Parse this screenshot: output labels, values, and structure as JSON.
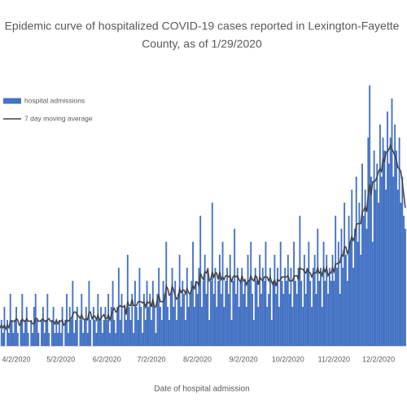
{
  "chart_data": {
    "type": "bar_line",
    "title": "Epidemic curve of hospitalized COVID-19 cases reported in Lexington-Fayette",
    "subtitle": "County, as of 1/29/2020",
    "x_label": "Date of hospital admission",
    "legend": "top-left",
    "categories": [
      null,
      null,
      null,
      null,
      null,
      null,
      null,
      null,
      null,
      null,
      null,
      null,
      "4/2/2020",
      null,
      null,
      null,
      null,
      null,
      null,
      null,
      null,
      null,
      null,
      null,
      null,
      null,
      null,
      null,
      null,
      null,
      null,
      null,
      null,
      null,
      null,
      null,
      null,
      null,
      null,
      null,
      null,
      null,
      "5/2/2020",
      null,
      null,
      null,
      null,
      null,
      null,
      null,
      null,
      null,
      null,
      null,
      null,
      null,
      null,
      null,
      null,
      null,
      null,
      null,
      null,
      null,
      null,
      null,
      null,
      null,
      null,
      null,
      null,
      null,
      null,
      "6/2/2020",
      null,
      null,
      null,
      null,
      null,
      null,
      null,
      null,
      null,
      null,
      null,
      null,
      null,
      null,
      null,
      null,
      null,
      null,
      null,
      null,
      null,
      null,
      null,
      null,
      null,
      null,
      null,
      null,
      null,
      "7/2/2020",
      null,
      null,
      null,
      null,
      null,
      null,
      null,
      null,
      null,
      null,
      null,
      null,
      null,
      null,
      null,
      null,
      null,
      null,
      null,
      null,
      null,
      null,
      null,
      null,
      null,
      null,
      null,
      null,
      null,
      null,
      "8/2/2020",
      null,
      null,
      null,
      null,
      null,
      null,
      null,
      null,
      null,
      null,
      null,
      null,
      null,
      null,
      null,
      null,
      null,
      null,
      null,
      null,
      null,
      null,
      null,
      null,
      null,
      null,
      null,
      null,
      null,
      null,
      "9/2/2020",
      null,
      null,
      null,
      null,
      null,
      null,
      null,
      null,
      null,
      null,
      null,
      null,
      null,
      null,
      null,
      null,
      null,
      null,
      null,
      null,
      null,
      null,
      null,
      null,
      null,
      null,
      null,
      null,
      null,
      "10/2/2020",
      null,
      null,
      null,
      null,
      null,
      null,
      null,
      null,
      null,
      null,
      null,
      null,
      null,
      null,
      null,
      null,
      null,
      null,
      null,
      null,
      null,
      null,
      null,
      null,
      null,
      null,
      null,
      null,
      null,
      null,
      "11/2/2020",
      null,
      null,
      null,
      null,
      null,
      null,
      null,
      null,
      null,
      null,
      null,
      null,
      null,
      null,
      null,
      null,
      null,
      null,
      null,
      null,
      null,
      null,
      null,
      null,
      null,
      null,
      null,
      null,
      null,
      "12/2/2020",
      null,
      null,
      null,
      null,
      null,
      null,
      null,
      null,
      null,
      null,
      null,
      null,
      null,
      null,
      null,
      null,
      null,
      null
    ],
    "series": [
      {
        "name": "hospital admissions",
        "type": "bar",
        "color": "#4472c4",
        "values": [
          1,
          0,
          2,
          1,
          3,
          0,
          2,
          1,
          4,
          2,
          1,
          2,
          3,
          1,
          0,
          2,
          4,
          1,
          2,
          3,
          1,
          0,
          2,
          1,
          3,
          4,
          2,
          1,
          0,
          2,
          3,
          1,
          2,
          4,
          1,
          0,
          2,
          3,
          1,
          2,
          1,
          2,
          1,
          3,
          0,
          2,
          4,
          1,
          3,
          2,
          5,
          1,
          2,
          3,
          0,
          2,
          4,
          1,
          2,
          3,
          1,
          5,
          2,
          0,
          3,
          2,
          1,
          4,
          2,
          3,
          1,
          2,
          3,
          2,
          4,
          1,
          3,
          5,
          2,
          1,
          3,
          6,
          2,
          4,
          1,
          3,
          2,
          7,
          3,
          2,
          4,
          1,
          5,
          3,
          2,
          6,
          3,
          1,
          4,
          2,
          5,
          3,
          4,
          2,
          5,
          3,
          1,
          4,
          6,
          3,
          2,
          5,
          4,
          8,
          3,
          2,
          4,
          6,
          3,
          5,
          2,
          4,
          7,
          3,
          5,
          4,
          2,
          6,
          3,
          4,
          5,
          8,
          3,
          5,
          4,
          6,
          10,
          3,
          5,
          7,
          4,
          6,
          2,
          5,
          11,
          4,
          6,
          3,
          5,
          7,
          4,
          8,
          3,
          5,
          6,
          4,
          7,
          2,
          5,
          9,
          4,
          6,
          3,
          5,
          6,
          4,
          5,
          3,
          7,
          5,
          8,
          4,
          2,
          6,
          5,
          3,
          7,
          4,
          6,
          5,
          8,
          3,
          4,
          6,
          2,
          5,
          7,
          4,
          6,
          3,
          8,
          5,
          4,
          6,
          5,
          7,
          4,
          6,
          3,
          8,
          5,
          4,
          6,
          10,
          5,
          3,
          7,
          4,
          6,
          8,
          5,
          3,
          6,
          7,
          4,
          9,
          5,
          6,
          3,
          8,
          5,
          7,
          4,
          6,
          5,
          7,
          5,
          10,
          6,
          8,
          4,
          9,
          6,
          11,
          7,
          5,
          10,
          8,
          12,
          6,
          9,
          13,
          8,
          11,
          7,
          14,
          10,
          12,
          9,
          16,
          20,
          13,
          8,
          15,
          12,
          14,
          11,
          17,
          13,
          16,
          15,
          12,
          18,
          14,
          16,
          19,
          13,
          17,
          15,
          12,
          16,
          11,
          13,
          10,
          9
        ]
      },
      {
        "name": "7 day moving average",
        "type": "line",
        "color": "#404040",
        "values": [
          1.6,
          1.4,
          1.6,
          1.4,
          1.6,
          1.3,
          1.6,
          1.4,
          1.9,
          1.9,
          1.9,
          1.9,
          2.1,
          2.0,
          1.6,
          1.7,
          2.1,
          1.9,
          1.9,
          2.1,
          1.9,
          1.9,
          1.9,
          1.7,
          1.7,
          2.1,
          2.1,
          1.9,
          1.9,
          2.0,
          2.1,
          1.9,
          1.9,
          2.0,
          2.1,
          1.9,
          1.9,
          1.9,
          1.7,
          2.0,
          1.7,
          1.9,
          1.9,
          2.0,
          1.6,
          1.7,
          2.0,
          1.9,
          2.0,
          2.1,
          2.4,
          2.6,
          2.6,
          2.4,
          2.3,
          2.1,
          2.4,
          2.1,
          2.0,
          2.1,
          2.0,
          2.6,
          2.6,
          2.1,
          2.3,
          2.3,
          2.0,
          2.4,
          2.0,
          2.1,
          2.3,
          2.4,
          2.1,
          2.1,
          2.4,
          2.0,
          2.4,
          2.7,
          2.9,
          2.6,
          2.7,
          3.0,
          3.1,
          3.0,
          3.0,
          3.1,
          2.4,
          3.4,
          3.1,
          3.1,
          3.6,
          3.1,
          3.1,
          3.1,
          3.4,
          3.4,
          3.4,
          3.3,
          3.4,
          3.0,
          3.4,
          3.3,
          3.4,
          3.0,
          3.6,
          3.0,
          3.0,
          3.6,
          3.9,
          3.4,
          3.4,
          3.4,
          3.6,
          4.6,
          4.4,
          3.9,
          4.0,
          4.6,
          4.3,
          3.9,
          3.6,
          3.7,
          4.4,
          4.1,
          4.3,
          4.3,
          4.0,
          4.4,
          4.1,
          4.0,
          4.3,
          4.6,
          4.4,
          4.9,
          4.9,
          4.6,
          5.6,
          5.3,
          5.1,
          5.7,
          5.6,
          5.9,
          5.0,
          5.1,
          5.7,
          5.3,
          5.6,
          5.6,
          5.1,
          5.7,
          5.1,
          5.3,
          5.1,
          5.4,
          5.4,
          5.3,
          5.4,
          4.9,
          5.3,
          5.4,
          5.3,
          5.4,
          5.1,
          4.9,
          5.4,
          5.0,
          5.1,
          4.7,
          5.0,
          5.0,
          5.4,
          5.1,
          5.0,
          5.4,
          5.3,
          4.7,
          5.3,
          5.1,
          5.0,
          5.3,
          5.3,
          5.3,
          5.0,
          5.3,
          4.9,
          4.7,
          5.1,
          4.6,
          5.1,
          5.0,
          5.1,
          5.3,
          5.3,
          5.3,
          5.3,
          5.4,
          5.0,
          5.0,
          5.0,
          5.3,
          5.4,
          5.4,
          5.1,
          6.0,
          5.9,
          5.9,
          5.7,
          5.6,
          5.9,
          5.7,
          5.6,
          5.3,
          5.6,
          5.6,
          5.6,
          6.0,
          5.6,
          5.7,
          5.4,
          6.0,
          5.7,
          6.0,
          5.4,
          5.6,
          5.6,
          6.0,
          5.7,
          6.3,
          6.3,
          6.4,
          6.4,
          7.0,
          6.9,
          7.6,
          7.6,
          7.1,
          7.4,
          8.0,
          8.4,
          8.1,
          8.4,
          9.3,
          9.4,
          9.4,
          9.4,
          10.3,
          10.4,
          10.7,
          10.3,
          11.6,
          12.4,
          11.6,
          12.6,
          12.6,
          12.7,
          13.0,
          13.4,
          13.6,
          13.4,
          14.4,
          14.1,
          14.9,
          14.9,
          15.1,
          15.4,
          15.1,
          14.9,
          14.6,
          14.3,
          13.7,
          13.6,
          13.4,
          12.6,
          11.6,
          10.6
        ]
      }
    ]
  }
}
